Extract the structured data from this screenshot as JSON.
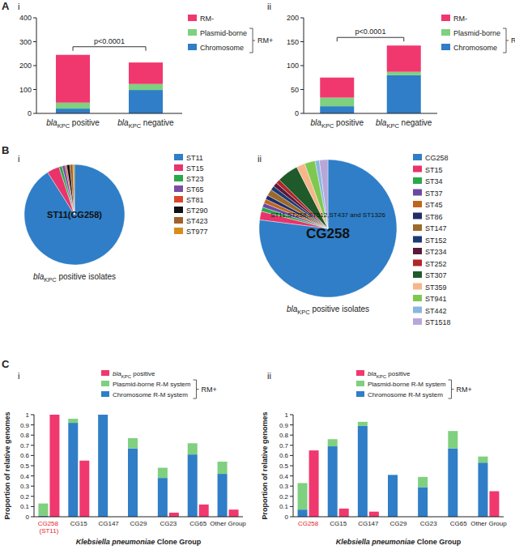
{
  "panel_labels": [
    "A",
    "B",
    "C"
  ],
  "chart_data": [
    {
      "type": "bar",
      "title": "i",
      "stacked": true,
      "legend": "right",
      "categories": [
        "blaKPC positive",
        "blaKPC negative"
      ],
      "series": [
        {
          "name": "Chromosome",
          "color": "#2f7ec7",
          "values": [
            20,
            98
          ]
        },
        {
          "name": "Plasmid-borne",
          "color": "#7fd07f",
          "values": [
            25,
            25
          ]
        },
        {
          "name": "RM-",
          "color": "#f0386f",
          "values": [
            200,
            90
          ]
        }
      ],
      "ylim": [
        0,
        400
      ],
      "yticks": [
        0,
        100,
        200,
        300,
        400
      ],
      "annotations": [
        "p<0.0001",
        "RM+"
      ]
    },
    {
      "type": "bar",
      "title": "ii",
      "stacked": true,
      "legend": "right",
      "categories": [
        "blaKPC positive",
        "blaKPC negative"
      ],
      "series": [
        {
          "name": "Chromosome",
          "color": "#2f7ec7",
          "values": [
            15,
            80
          ]
        },
        {
          "name": "Plasmid-borne",
          "color": "#7fd07f",
          "values": [
            18,
            7
          ]
        },
        {
          "name": "RM-",
          "color": "#f0386f",
          "values": [
            42,
            55
          ]
        }
      ],
      "ylim": [
        0,
        200
      ],
      "yticks": [
        0,
        50,
        100,
        150,
        200
      ],
      "annotations": [
        "p<0.0001",
        "RM+"
      ]
    },
    {
      "type": "pie",
      "title": "i",
      "legend": "right",
      "categories": [
        "ST11",
        "ST15",
        "ST23",
        "ST65",
        "ST81",
        "ST290",
        "ST423",
        "ST977"
      ],
      "values": [
        91,
        4,
        1,
        1,
        0.5,
        1,
        1,
        0.5
      ],
      "colors": [
        "#2f7ec7",
        "#e8336b",
        "#2aa84a",
        "#7b4ea3",
        "#d9472b",
        "#111111",
        "#a0612b",
        "#d98c1a"
      ],
      "xlabel": "blaKPC positive isolates",
      "annotations": [
        "ST11(CG258)"
      ]
    },
    {
      "type": "pie",
      "title": "ii",
      "legend": "right",
      "categories": [
        "CG258",
        "ST15",
        "ST34",
        "ST37",
        "ST45",
        "ST86",
        "ST147",
        "ST152",
        "ST234",
        "ST252",
        "ST307",
        "ST359",
        "ST941",
        "ST442",
        "ST1518"
      ],
      "values": [
        77,
        2,
        1,
        1,
        1,
        1,
        1.5,
        1,
        1,
        1,
        5,
        2,
        2.5,
        1,
        2
      ],
      "colors": [
        "#2f7ec7",
        "#e8336b",
        "#2aa84a",
        "#6a4aa0",
        "#c0651d",
        "#1f2d6b",
        "#9b6a2a",
        "#1b3a78",
        "#5a1a3a",
        "#b2262a",
        "#1f5a2a",
        "#f5b78a",
        "#7ec850",
        "#8ab6e0",
        "#b7a7d9"
      ],
      "xlabel": "blaKPC positive isolates",
      "annotations": [
        "ST11,ST258,ST512,ST437 and ST1326",
        "CG258"
      ]
    },
    {
      "type": "bar",
      "title": "i",
      "legend": "top",
      "categories": [
        "CG258 (ST11)",
        "CG15",
        "CG147",
        "CG29",
        "CG23",
        "CG65",
        "Other Group"
      ],
      "series": [
        {
          "name": "Chromosome R-M system",
          "type": "stacked_bar",
          "color": "#2f7ec7",
          "values": [
            0.01,
            0.92,
            1.0,
            0.67,
            0.38,
            0.61,
            0.42
          ]
        },
        {
          "name": "Plasmid-borne R-M system",
          "type": "stacked_bar",
          "color": "#7fd07f",
          "values": [
            0.12,
            0.04,
            0,
            0.1,
            0.1,
            0.11,
            0.12
          ]
        },
        {
          "name": "blaKPC positive",
          "type": "bar",
          "color": "#f0386f",
          "values": [
            1.0,
            0.55,
            0,
            0,
            0.04,
            0.12,
            0.07
          ]
        }
      ],
      "ylim": [
        0,
        1
      ],
      "yticks": [
        0,
        0.1,
        0.2,
        0.3,
        0.4,
        0.5,
        0.6,
        0.7,
        0.8,
        0.9,
        1
      ],
      "xlabel": "Klebsiella pneumoniae Clone Group",
      "ylabel": "Proportion of relative genomes",
      "annotations": [
        "RM+"
      ]
    },
    {
      "type": "bar",
      "title": "ii",
      "legend": "top",
      "categories": [
        "CG258",
        "CG15",
        "CG147",
        "CG29",
        "CG23",
        "CG65",
        "Other Group"
      ],
      "series": [
        {
          "name": "Chromosome R-M system",
          "type": "stacked_bar",
          "color": "#2f7ec7",
          "values": [
            0.07,
            0.69,
            0.89,
            0.41,
            0.29,
            0.67,
            0.53
          ]
        },
        {
          "name": "Plasmid-borne R-M system",
          "type": "stacked_bar",
          "color": "#7fd07f",
          "values": [
            0.26,
            0.07,
            0.04,
            0,
            0.1,
            0.17,
            0.06
          ]
        },
        {
          "name": "blaKPC positive",
          "type": "bar",
          "color": "#f0386f",
          "values": [
            0.65,
            0.08,
            0.05,
            0,
            0,
            0,
            0.25
          ]
        }
      ],
      "ylim": [
        0,
        1
      ],
      "yticks": [
        0,
        0.1,
        0.2,
        0.3,
        0.4,
        0.5,
        0.6,
        0.7,
        0.8,
        0.9,
        1
      ],
      "xlabel": "Klebsiella pneumoniae Clone Group",
      "ylabel": "Proportion of relative genomes",
      "annotations": [
        "RM+"
      ]
    }
  ]
}
